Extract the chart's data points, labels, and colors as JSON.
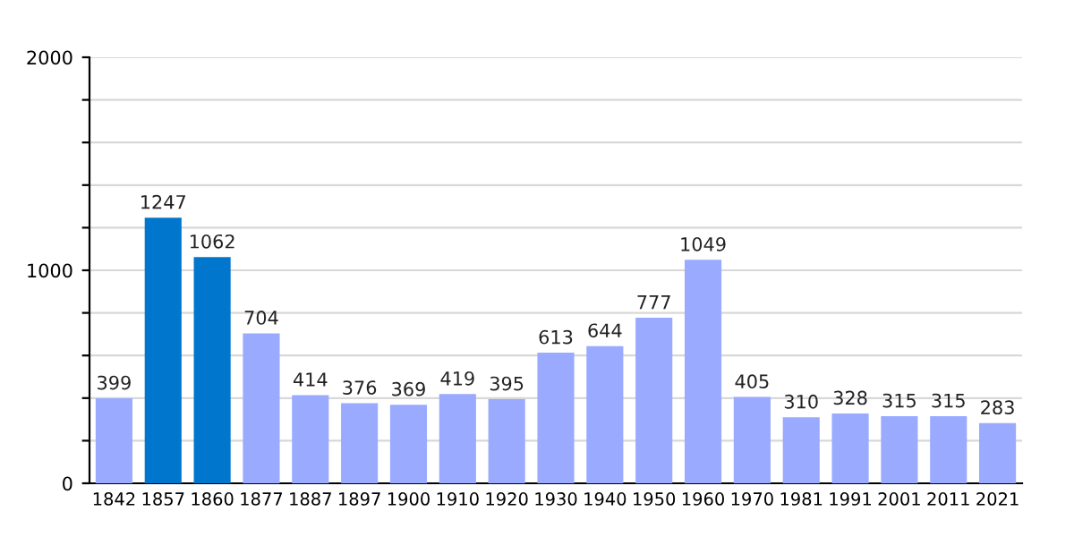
{
  "chart_data": {
    "type": "bar",
    "categories": [
      "1842",
      "1857",
      "1860",
      "1877",
      "1887",
      "1897",
      "1900",
      "1910",
      "1920",
      "1930",
      "1940",
      "1950",
      "1960",
      "1970",
      "1981",
      "1991",
      "2001",
      "2011",
      "2021"
    ],
    "values": [
      399,
      1247,
      1062,
      704,
      414,
      376,
      369,
      419,
      395,
      613,
      644,
      777,
      1049,
      405,
      310,
      328,
      315,
      315,
      283
    ],
    "colors": [
      "#99aaff",
      "#0077cc",
      "#0077cc",
      "#99aaff",
      "#99aaff",
      "#99aaff",
      "#99aaff",
      "#99aaff",
      "#99aaff",
      "#99aaff",
      "#99aaff",
      "#99aaff",
      "#99aaff",
      "#99aaff",
      "#99aaff",
      "#99aaff",
      "#99aaff",
      "#99aaff",
      "#99aaff"
    ],
    "ylim": [
      0,
      2000
    ],
    "yticks": [
      0,
      {
        "value": 200,
        "label": null
      },
      {
        "value": 400,
        "label": null
      },
      {
        "value": 600,
        "label": null
      },
      {
        "value": 800,
        "label": null
      },
      1000,
      {
        "value": 1200,
        "label": null
      },
      {
        "value": 1400,
        "label": null
      },
      {
        "value": 1600,
        "label": null
      },
      {
        "value": 1800,
        "label": null
      },
      2000
    ],
    "grid": "y",
    "data_labels": true
  }
}
